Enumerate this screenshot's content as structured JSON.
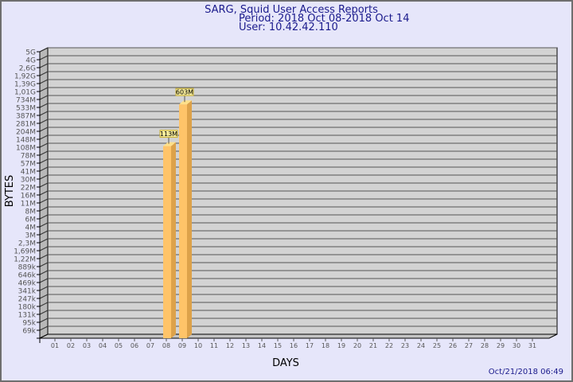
{
  "chart_data": {
    "type": "bar",
    "title": "SARG, Squid User Access Reports",
    "subtitle_period": "Period: 2018 Oct 08-2018 Oct 14",
    "subtitle_user": "User: 10.42.42.110",
    "xlabel": "DAYS",
    "ylabel": "BYTES",
    "timestamp": "Oct/21/2018 06:49",
    "y_scale": "log",
    "grid": true,
    "y_ticks": [
      "5G",
      "4G",
      "2,6G",
      "1,92G",
      "1,39G",
      "1,01G",
      "734M",
      "533M",
      "387M",
      "281M",
      "204M",
      "148M",
      "108M",
      "78M",
      "57M",
      "41M",
      "30M",
      "22M",
      "16M",
      "11M",
      "8M",
      "6M",
      "4M",
      "3M",
      "2,3M",
      "1,69M",
      "1,22M",
      "889k",
      "646k",
      "469k",
      "341k",
      "247k",
      "180k",
      "131k",
      "95k",
      "69k"
    ],
    "categories": [
      "01",
      "02",
      "03",
      "04",
      "05",
      "06",
      "07",
      "08",
      "09",
      "10",
      "11",
      "12",
      "13",
      "14",
      "15",
      "16",
      "17",
      "18",
      "19",
      "20",
      "21",
      "22",
      "23",
      "24",
      "25",
      "26",
      "27",
      "28",
      "29",
      "30",
      "31"
    ],
    "bars": [
      {
        "day": "08",
        "label": "113M",
        "value": 113000000
      },
      {
        "day": "09",
        "label": "603M",
        "value": 603000000
      }
    ],
    "colors": {
      "background": "#e6e6fa",
      "plot": "#d3d3d3",
      "bar_front": "#ffc469",
      "bar_side": "#dda24a",
      "bar_top": "#ffe08a",
      "title": "#1a1a8c",
      "label_box": "#f4ea9a"
    }
  }
}
